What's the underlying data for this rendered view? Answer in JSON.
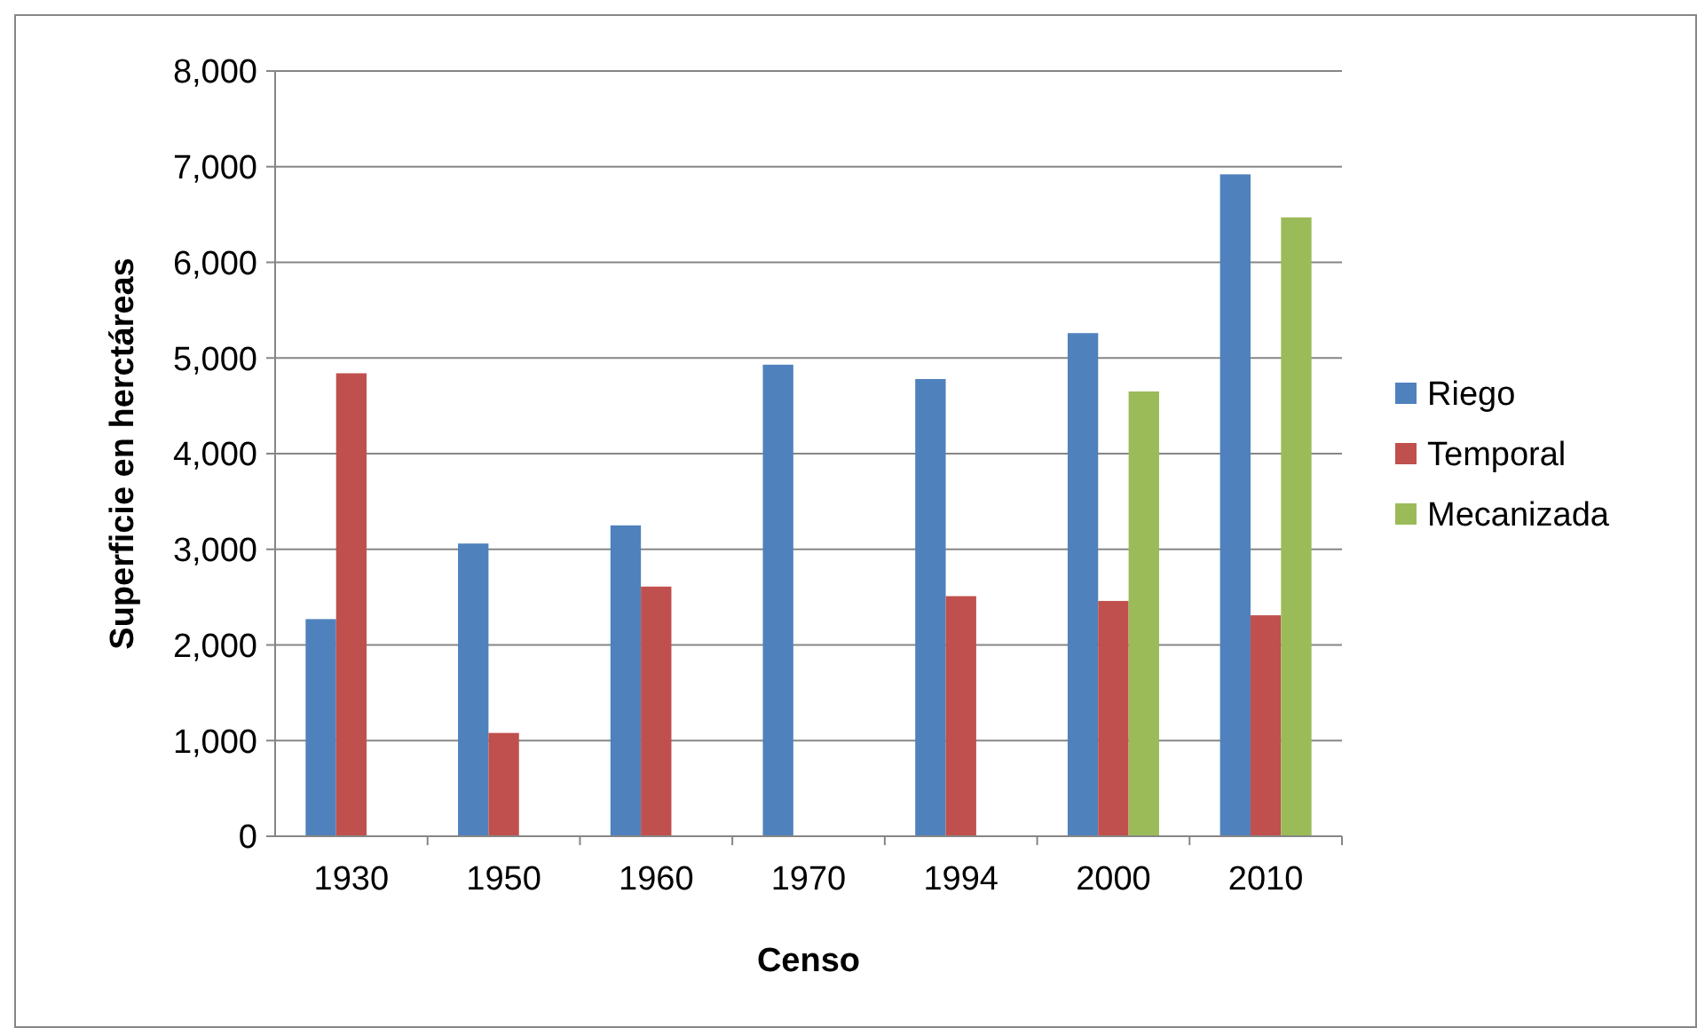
{
  "chart_data": {
    "type": "bar",
    "xlabel": "Censo",
    "ylabel": "Superficie en herctáreas",
    "categories": [
      "1930",
      "1950",
      "1960",
      "1970",
      "1994",
      "2000",
      "2010"
    ],
    "series": [
      {
        "name": "Riego",
        "color": "#4f81bd",
        "values": [
          2270,
          3060,
          3250,
          4930,
          4780,
          5260,
          6920
        ]
      },
      {
        "name": "Temporal",
        "color": "#c0504d",
        "values": [
          4840,
          1080,
          2610,
          null,
          2510,
          2460,
          2310
        ]
      },
      {
        "name": "Mecanizada",
        "color": "#9bbb59",
        "values": [
          null,
          null,
          null,
          null,
          null,
          4650,
          6470
        ]
      }
    ],
    "ylim": [
      0,
      8000
    ],
    "yticks": [
      {
        "value": 0,
        "label": "0"
      },
      {
        "value": 1000,
        "label": "1,000"
      },
      {
        "value": 2000,
        "label": "2,000"
      },
      {
        "value": 3000,
        "label": "3,000"
      },
      {
        "value": 4000,
        "label": "4,000"
      },
      {
        "value": 5000,
        "label": "5,000"
      },
      {
        "value": 6000,
        "label": "6,000"
      },
      {
        "value": 7000,
        "label": "7,000"
      },
      {
        "value": 8000,
        "label": "8,000"
      }
    ],
    "grid": "y",
    "legend": "right"
  }
}
